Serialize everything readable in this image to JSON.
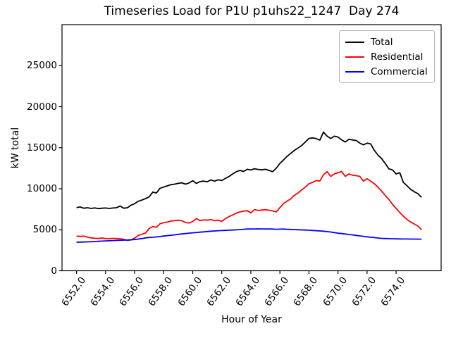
{
  "chart_data": {
    "type": "line",
    "title": "Timeseries Load for P1U p1uhs22_1247  Day 274",
    "xlabel": "Hour of Year",
    "ylabel": "kW total",
    "xlim": [
      6551.0,
      6577.1
    ],
    "ylim": [
      0,
      30000
    ],
    "grid": false,
    "legend_position": "upper right",
    "xticks": [
      6552,
      6554,
      6556,
      6558,
      6560,
      6562,
      6564,
      6566,
      6568,
      6570,
      6572,
      6574
    ],
    "xtick_labels": [
      "6552.0",
      "6554.0",
      "6556.0",
      "6558.0",
      "6560.0",
      "6562.0",
      "6564.0",
      "6566.0",
      "6568.0",
      "6570.0",
      "6572.0",
      "6574.0"
    ],
    "yticks": [
      0,
      5000,
      10000,
      15000,
      20000,
      25000
    ],
    "ytick_labels": [
      "0",
      "5000",
      "10000",
      "15000",
      "20000",
      "25000"
    ],
    "x": [
      6552.0,
      6552.25,
      6552.5,
      6552.75,
      6553.0,
      6553.25,
      6553.5,
      6553.75,
      6554.0,
      6554.25,
      6554.5,
      6554.75,
      6555.0,
      6555.25,
      6555.5,
      6555.75,
      6556.0,
      6556.25,
      6556.5,
      6556.75,
      6557.0,
      6557.25,
      6557.5,
      6557.75,
      6558.0,
      6558.25,
      6558.5,
      6558.75,
      6559.0,
      6559.25,
      6559.5,
      6559.75,
      6560.0,
      6560.25,
      6560.5,
      6560.75,
      6561.0,
      6561.25,
      6561.5,
      6561.75,
      6562.0,
      6562.25,
      6562.5,
      6562.75,
      6563.0,
      6563.25,
      6563.5,
      6563.75,
      6564.0,
      6564.25,
      6564.5,
      6564.75,
      6565.0,
      6565.25,
      6565.5,
      6565.75,
      6566.0,
      6566.25,
      6566.5,
      6566.75,
      6567.0,
      6567.25,
      6567.5,
      6567.75,
      6568.0,
      6568.25,
      6568.5,
      6568.75,
      6569.0,
      6569.25,
      6569.5,
      6569.75,
      6570.0,
      6570.25,
      6570.5,
      6570.75,
      6571.0,
      6571.25,
      6571.5,
      6571.75,
      6572.0,
      6572.25,
      6572.5,
      6572.75,
      6573.0,
      6573.25,
      6573.5,
      6573.75,
      6574.0,
      6574.25,
      6574.5,
      6574.75,
      6575.0,
      6575.25,
      6575.5,
      6575.75
    ],
    "series": [
      {
        "name": "Total",
        "color": "#000000",
        "values": [
          7700,
          7780,
          7620,
          7680,
          7600,
          7660,
          7570,
          7620,
          7650,
          7600,
          7650,
          7680,
          7890,
          7620,
          7680,
          7990,
          8180,
          8470,
          8620,
          8800,
          9000,
          9600,
          9480,
          10060,
          10200,
          10350,
          10490,
          10560,
          10650,
          10720,
          10560,
          10700,
          10980,
          10640,
          10870,
          10930,
          10850,
          11070,
          10930,
          11080,
          11000,
          11250,
          11490,
          11800,
          12080,
          12230,
          12100,
          12370,
          12280,
          12440,
          12350,
          12300,
          12370,
          12230,
          12080,
          12500,
          13090,
          13500,
          13960,
          14320,
          14680,
          14970,
          15260,
          15700,
          16130,
          16200,
          16100,
          15920,
          16900,
          16400,
          16130,
          16400,
          16300,
          15950,
          15690,
          16030,
          15950,
          15880,
          15550,
          15350,
          15550,
          15460,
          14680,
          14100,
          13670,
          13090,
          12420,
          12300,
          11800,
          11950,
          10780,
          10350,
          9920,
          9630,
          9400,
          8950
        ]
      },
      {
        "name": "Residential",
        "color": "#ff0000",
        "values": [
          4230,
          4180,
          4220,
          4100,
          4000,
          3960,
          3940,
          3990,
          3920,
          3900,
          3960,
          3920,
          3900,
          3840,
          3700,
          3760,
          3980,
          4300,
          4450,
          4600,
          5150,
          5400,
          5300,
          5730,
          5850,
          5930,
          6060,
          6110,
          6150,
          6100,
          5880,
          5820,
          6000,
          6360,
          6100,
          6200,
          6160,
          6250,
          6100,
          6160,
          6020,
          6360,
          6600,
          6800,
          7030,
          7180,
          7260,
          7320,
          7060,
          7460,
          7350,
          7400,
          7450,
          7380,
          7300,
          7170,
          7700,
          8180,
          8500,
          8760,
          9200,
          9480,
          9850,
          10200,
          10600,
          10780,
          11000,
          10930,
          11700,
          12080,
          11500,
          11800,
          11940,
          12100,
          11500,
          11800,
          11650,
          11600,
          11500,
          10930,
          11215,
          10930,
          10600,
          10200,
          9700,
          9200,
          8700,
          8100,
          7600,
          7100,
          6650,
          6250,
          5950,
          5700,
          5450,
          5000
        ]
      },
      {
        "name": "Commercial",
        "color": "#0000ff",
        "values": [
          3480,
          3490,
          3500,
          3520,
          3545,
          3565,
          3590,
          3615,
          3640,
          3660,
          3680,
          3700,
          3715,
          3730,
          3750,
          3775,
          3800,
          3860,
          3920,
          4000,
          4060,
          4090,
          4120,
          4170,
          4230,
          4280,
          4330,
          4380,
          4440,
          4490,
          4530,
          4580,
          4630,
          4660,
          4700,
          4740,
          4780,
          4820,
          4850,
          4880,
          4900,
          4920,
          4940,
          4960,
          4990,
          5020,
          5060,
          5100,
          5090,
          5100,
          5110,
          5100,
          5090,
          5100,
          5080,
          5060,
          5070,
          5080,
          5060,
          5040,
          5020,
          5000,
          4980,
          4960,
          4940,
          4910,
          4880,
          4850,
          4820,
          4770,
          4720,
          4650,
          4580,
          4530,
          4480,
          4420,
          4370,
          4310,
          4250,
          4200,
          4140,
          4090,
          4040,
          3990,
          3950,
          3930,
          3910,
          3900,
          3890,
          3880,
          3870,
          3870,
          3860,
          3860,
          3850,
          3850
        ]
      }
    ]
  }
}
